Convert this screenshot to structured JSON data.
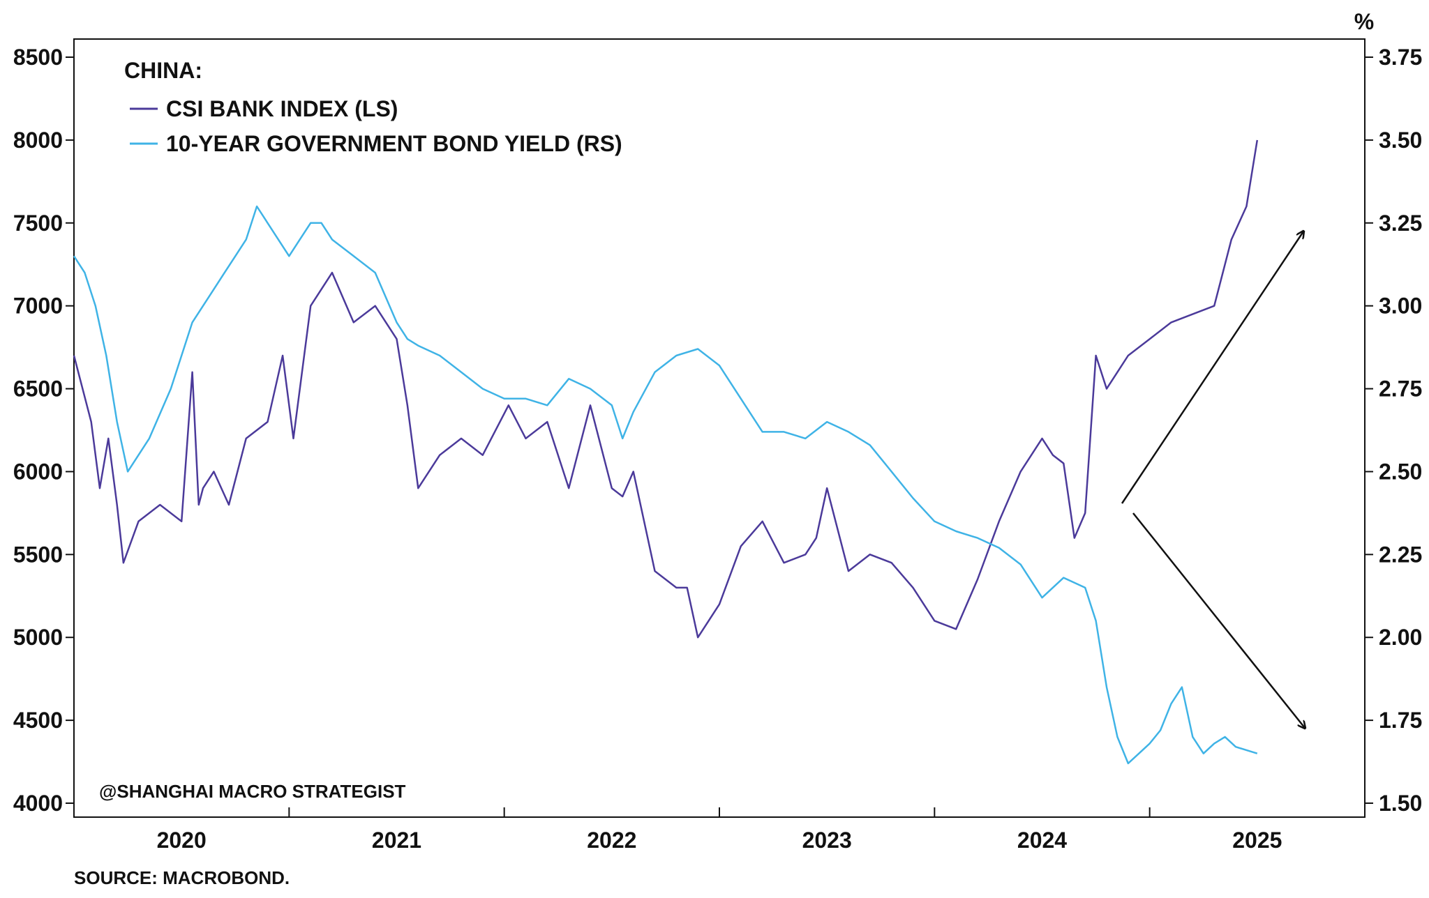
{
  "chart_data": {
    "type": "line",
    "title": "",
    "legend": {
      "heading": "CHINA:",
      "placement": "top-left"
    },
    "x_ticks": [
      "2020",
      "2021",
      "2022",
      "2023",
      "2024",
      "2025"
    ],
    "x_range": [
      2019.5,
      2025.5
    ],
    "y_left": {
      "label": "",
      "range": [
        4000,
        8500
      ],
      "ticks": [
        4000,
        4500,
        5000,
        5500,
        6000,
        6500,
        7000,
        7500,
        8000,
        8500
      ]
    },
    "y_right": {
      "unit_label": "%",
      "range": [
        1.5,
        3.75
      ],
      "ticks": [
        "1.50",
        "1.75",
        "2.00",
        "2.25",
        "2.50",
        "2.75",
        "3.00",
        "3.25",
        "3.50",
        "3.75"
      ]
    },
    "grid": false,
    "series": [
      {
        "name": "CSI BANK INDEX (LS)",
        "axis": "left",
        "color": "#4b3a9a",
        "x": [
          2019.5,
          2019.58,
          2019.62,
          2019.66,
          2019.7,
          2019.73,
          2019.8,
          2019.9,
          2020.0,
          2020.05,
          2020.08,
          2020.1,
          2020.15,
          2020.22,
          2020.3,
          2020.4,
          2020.47,
          2020.52,
          2020.6,
          2020.7,
          2020.8,
          2020.9,
          2021.0,
          2021.05,
          2021.1,
          2021.2,
          2021.3,
          2021.4,
          2021.52,
          2021.6,
          2021.7,
          2021.8,
          2021.9,
          2022.0,
          2022.05,
          2022.1,
          2022.2,
          2022.3,
          2022.35,
          2022.4,
          2022.5,
          2022.6,
          2022.7,
          2022.8,
          2022.9,
          2022.95,
          2023.0,
          2023.1,
          2023.2,
          2023.3,
          2023.4,
          2023.5,
          2023.6,
          2023.7,
          2023.8,
          2023.9,
          2024.0,
          2024.05,
          2024.1,
          2024.15,
          2024.2,
          2024.25,
          2024.3,
          2024.35,
          2024.4,
          2024.5,
          2024.6,
          2024.7,
          2024.8,
          2024.88,
          2024.95,
          2025.0
        ],
        "values": [
          6700,
          6300,
          5900,
          6200,
          5800,
          5450,
          5700,
          5800,
          5700,
          6600,
          5800,
          5900,
          6000,
          5800,
          6200,
          6300,
          6700,
          6200,
          7000,
          7200,
          6900,
          7000,
          6800,
          6400,
          5900,
          6100,
          6200,
          6100,
          6400,
          6200,
          6300,
          5900,
          6400,
          5900,
          5850,
          6000,
          5400,
          5300,
          5300,
          5000,
          5200,
          5550,
          5700,
          5450,
          5500,
          5600,
          5900,
          5400,
          5500,
          5450,
          5300,
          5100,
          5050,
          5350,
          5700,
          6000,
          6200,
          6100,
          6050,
          5600,
          5750,
          6700,
          6500,
          6600,
          6700,
          6800,
          6900,
          6950,
          7000,
          7400,
          7600,
          8000
        ]
      },
      {
        "name": "10-YEAR GOVERNMENT BOND YIELD (RS)",
        "axis": "right",
        "color": "#3fb3e6",
        "x": [
          2019.5,
          2019.55,
          2019.6,
          2019.65,
          2019.7,
          2019.75,
          2019.85,
          2019.95,
          2020.0,
          2020.05,
          2020.1,
          2020.15,
          2020.2,
          2020.25,
          2020.3,
          2020.35,
          2020.4,
          2020.45,
          2020.5,
          2020.55,
          2020.6,
          2020.65,
          2020.7,
          2020.8,
          2020.9,
          2021.0,
          2021.05,
          2021.1,
          2021.2,
          2021.3,
          2021.4,
          2021.5,
          2021.6,
          2021.7,
          2021.8,
          2021.9,
          2022.0,
          2022.05,
          2022.1,
          2022.2,
          2022.3,
          2022.4,
          2022.5,
          2022.6,
          2022.7,
          2022.8,
          2022.9,
          2023.0,
          2023.1,
          2023.2,
          2023.3,
          2023.4,
          2023.5,
          2023.6,
          2023.7,
          2023.8,
          2023.9,
          2024.0,
          2024.1,
          2024.2,
          2024.25,
          2024.3,
          2024.35,
          2024.4,
          2024.45,
          2024.5,
          2024.55,
          2024.6,
          2024.65,
          2024.7,
          2024.75,
          2024.8,
          2024.85,
          2024.9,
          2024.95,
          2025.0
        ],
        "values": [
          3.15,
          3.1,
          3.0,
          2.85,
          2.65,
          2.5,
          2.6,
          2.75,
          2.85,
          2.95,
          3.0,
          3.05,
          3.1,
          3.15,
          3.2,
          3.3,
          3.25,
          3.2,
          3.15,
          3.2,
          3.25,
          3.25,
          3.2,
          3.15,
          3.1,
          2.95,
          2.9,
          2.88,
          2.85,
          2.8,
          2.75,
          2.72,
          2.72,
          2.7,
          2.78,
          2.75,
          2.7,
          2.6,
          2.68,
          2.8,
          2.85,
          2.87,
          2.82,
          2.72,
          2.62,
          2.62,
          2.6,
          2.65,
          2.62,
          2.58,
          2.5,
          2.42,
          2.35,
          2.32,
          2.3,
          2.27,
          2.22,
          2.12,
          2.18,
          2.15,
          2.05,
          1.85,
          1.7,
          1.62,
          1.65,
          1.68,
          1.72,
          1.8,
          1.85,
          1.7,
          1.65,
          1.68,
          1.7,
          1.67,
          1.66,
          1.65
        ]
      }
    ],
    "annotations": {
      "watermark": "@SHANGHAI MACRO STRATEGIST",
      "source": "SOURCE: MACROBOND.",
      "arrows": "two arrows diverging from the right: one pointing up-right, one pointing down-right"
    }
  }
}
